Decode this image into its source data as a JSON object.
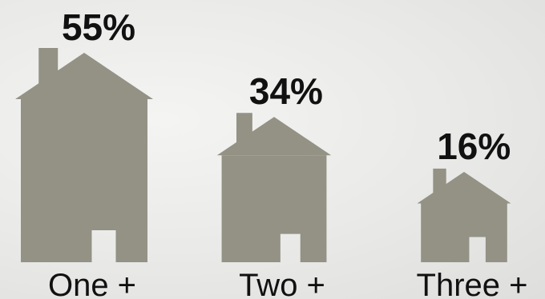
{
  "chart_data": {
    "type": "bar",
    "categories": [
      "One +",
      "Two +",
      "Three +"
    ],
    "values": [
      55,
      34,
      16
    ],
    "value_labels": [
      "55%",
      "34%",
      "16%"
    ],
    "unit": "%",
    "title": "",
    "xlabel": "",
    "ylabel": "",
    "mark_shape": "house",
    "colors": {
      "house": "#939285",
      "text": "#111111",
      "background": "#ececea"
    }
  }
}
